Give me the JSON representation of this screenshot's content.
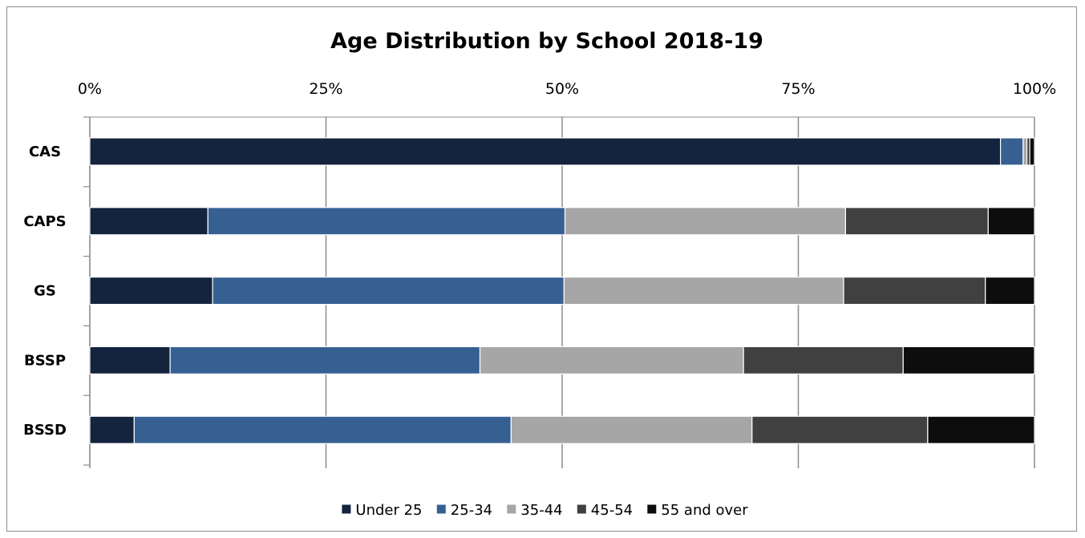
{
  "chart_data": {
    "type": "bar",
    "orientation": "horizontal",
    "stacked": "percent",
    "title": "Age Distribution by School 2018-19",
    "xlabel": "",
    "ylabel": "",
    "xlim": [
      0,
      100
    ],
    "x_ticks": [
      "0%",
      "25%",
      "50%",
      "75%",
      "100%"
    ],
    "x_axis_position": "top",
    "grid": true,
    "legend_position": "bottom",
    "categories": [
      "CAS",
      "CAPS",
      "GS",
      "BSSP",
      "BSSD"
    ],
    "series": [
      {
        "name": "Under 25",
        "color": "#14243f",
        "values": [
          96.4,
          12.5,
          13.0,
          8.5,
          4.7
        ]
      },
      {
        "name": "25-34",
        "color": "#376092",
        "values": [
          2.4,
          37.8,
          37.2,
          32.8,
          39.9
        ]
      },
      {
        "name": "35-44",
        "color": "#a6a6a6",
        "values": [
          0.4,
          29.7,
          29.6,
          27.9,
          25.5
        ]
      },
      {
        "name": "45-54",
        "color": "#404040",
        "values": [
          0.3,
          15.1,
          15.0,
          16.9,
          18.6
        ]
      },
      {
        "name": "55 and over",
        "color": "#0d0d0d",
        "values": [
          0.5,
          4.9,
          5.2,
          13.9,
          11.3
        ]
      }
    ]
  }
}
